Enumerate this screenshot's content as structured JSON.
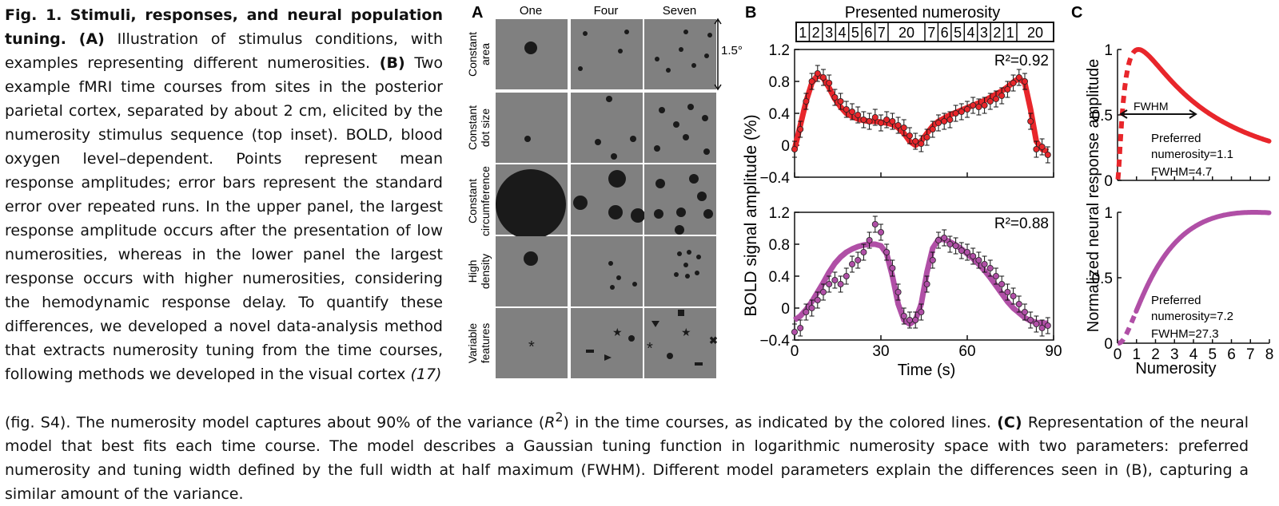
{
  "caption": {
    "figure_label": "Fig. 1.",
    "title": "Stimuli, responses, and neural population tuning.",
    "part_a_label": "(A)",
    "part_a_text": "Illustration of stimulus conditions, with examples representing different numerosities.",
    "part_b_label": "(B)",
    "part_b_text": "Two example fMRI time courses from sites in the posterior parietal cortex, separated by about 2 cm, elicited by the numerosity stimulus sequence (top inset). BOLD, blood oxygen level–dependent. Points represent mean response amplitudes; error bars represent the standard error over repeated runs. In the upper panel, the largest response amplitude occurs after the presentation of low numerosities, whereas in the lower panel the largest response occurs with higher numerosities, considering the hemodynamic response delay. To quantify these differences, we developed a novel data-analysis method that extracts numerosity tuning from the time courses, following methods we developed in the visual cortex",
    "ref": "(17)",
    "after_ref": "(fig. S4). The numerosity model captures about 90% of the variance (",
    "r2_symbol": "R",
    "r2_sup": "2",
    "after_r2": ") in the time courses, as indicated by the colored lines.",
    "part_c_label": "(C)",
    "part_c_text": "Representation of the neural model that best fits each time course. The model describes a Gaussian tuning function in logarithmic numerosity space with two parameters: preferred numerosity and tuning width defined by the full width at half maximum (FWHM). Different model parameters explain the differences seen in (B), capturing a similar amount of the variance."
  },
  "panel_a": {
    "label": "A",
    "columns": [
      "One",
      "Four",
      "Seven"
    ],
    "rows": [
      {
        "line1": "Constant",
        "line2": "area"
      },
      {
        "line1": "Constant",
        "line2": "dot size"
      },
      {
        "line1": "Constant",
        "line2": "circumference"
      },
      {
        "line1": "High",
        "line2": "density"
      },
      {
        "line1": "Variable",
        "line2": "features"
      }
    ],
    "scale_label": "1.5°",
    "tile_color": "#808080",
    "dot_color": "#1a1a1a"
  },
  "panel_b": {
    "label": "B",
    "inset_title": "Presented numerosity",
    "inset_sequence": [
      "1",
      "2",
      "3",
      "4",
      "5",
      "6",
      "7",
      "20",
      "7",
      "6",
      "5",
      "4",
      "3",
      "2",
      "1",
      "20"
    ],
    "ylabel": "BOLD signal amplitude (%)",
    "xlabel": "Time (s)",
    "x_ticks": [
      "0",
      "30",
      "60",
      "90"
    ],
    "y_ticks": [
      "1.2",
      "0.8",
      "0.4",
      "0",
      "−0.4"
    ]
  },
  "panel_c": {
    "label": "C",
    "ylabel": "Normalized neural response amplitude",
    "xlabel": "Numerosity",
    "x_ticks": [
      "0",
      "1",
      "2",
      "3",
      "4",
      "5",
      "6",
      "7",
      "8"
    ],
    "top_y_ticks": [
      "1",
      "0.5",
      "0"
    ],
    "bottom_y_ticks": [
      "1",
      "0.5",
      "0"
    ],
    "fwhm_label": "FWHM",
    "top_text": {
      "line1": "Preferred",
      "line2": "numerosity=1.1",
      "line3": "FWHM=4.7"
    },
    "bottom_text": {
      "line1": "Preferred",
      "line2": "numerosity=7.2",
      "line3": "FWHM=27.3"
    }
  },
  "chart_data": [
    {
      "type": "line",
      "xlabel": "Time (s)",
      "ylabel": "BOLD signal amplitude (%)",
      "xlim": [
        0,
        90
      ],
      "ylim": [
        -0.4,
        1.2
      ],
      "annotation": "R²=0.92",
      "color": "#e8262b",
      "x": [
        0,
        2,
        4,
        6,
        8,
        10,
        12,
        14,
        16,
        18,
        20,
        22,
        24,
        26,
        28,
        30,
        32,
        34,
        36,
        38,
        40,
        42,
        44,
        46,
        48,
        50,
        52,
        54,
        56,
        58,
        60,
        62,
        64,
        66,
        68,
        70,
        72,
        74,
        76,
        78,
        80,
        82,
        84,
        86,
        88
      ],
      "measured": [
        -0.05,
        0.2,
        0.55,
        0.8,
        0.9,
        0.85,
        0.78,
        0.6,
        0.55,
        0.45,
        0.42,
        0.38,
        0.32,
        0.3,
        0.35,
        0.28,
        0.32,
        0.3,
        0.25,
        0.22,
        0.12,
        0.05,
        0.02,
        0.1,
        0.2,
        0.28,
        0.3,
        0.32,
        0.4,
        0.42,
        0.45,
        0.5,
        0.48,
        0.5,
        0.55,
        0.58,
        0.62,
        0.7,
        0.78,
        0.85,
        0.8,
        0.3,
        -0.05,
        -0.02,
        -0.12
      ],
      "fit": [
        -0.05,
        0.25,
        0.55,
        0.78,
        0.88,
        0.84,
        0.72,
        0.58,
        0.48,
        0.4,
        0.36,
        0.33,
        0.31,
        0.3,
        0.3,
        0.29,
        0.28,
        0.26,
        0.22,
        0.15,
        0.05,
        0.0,
        0.05,
        0.15,
        0.24,
        0.3,
        0.34,
        0.38,
        0.41,
        0.44,
        0.47,
        0.5,
        0.53,
        0.56,
        0.6,
        0.64,
        0.68,
        0.73,
        0.79,
        0.84,
        0.78,
        0.45,
        0.05,
        -0.05,
        -0.08
      ]
    },
    {
      "type": "line",
      "xlabel": "Time (s)",
      "ylabel": "BOLD signal amplitude (%)",
      "xlim": [
        0,
        90
      ],
      "ylim": [
        -0.4,
        1.2
      ],
      "annotation": "R²=0.88",
      "color": "#b04fa6",
      "x": [
        0,
        2,
        4,
        6,
        8,
        10,
        12,
        14,
        16,
        18,
        20,
        22,
        24,
        26,
        28,
        30,
        32,
        34,
        36,
        38,
        40,
        42,
        44,
        46,
        48,
        50,
        52,
        54,
        56,
        58,
        60,
        62,
        64,
        66,
        68,
        70,
        72,
        74,
        76,
        78,
        80,
        82,
        84,
        86,
        88
      ],
      "measured": [
        -0.3,
        -0.25,
        -0.05,
        0.0,
        0.1,
        0.2,
        0.3,
        0.35,
        0.3,
        0.4,
        0.55,
        0.6,
        0.7,
        0.85,
        1.05,
        0.95,
        0.7,
        0.5,
        0.2,
        -0.1,
        -0.15,
        -0.15,
        -0.05,
        0.3,
        0.6,
        0.85,
        0.88,
        0.8,
        0.78,
        0.72,
        0.7,
        0.65,
        0.6,
        0.55,
        0.5,
        0.4,
        0.3,
        0.2,
        0.15,
        0.05,
        -0.05,
        -0.15,
        -0.2,
        -0.25,
        -0.22
      ],
      "fit": [
        -0.15,
        -0.1,
        -0.02,
        0.08,
        0.2,
        0.32,
        0.45,
        0.56,
        0.64,
        0.7,
        0.74,
        0.77,
        0.79,
        0.8,
        0.8,
        0.78,
        0.68,
        0.4,
        0.05,
        -0.15,
        -0.2,
        -0.15,
        0.05,
        0.45,
        0.75,
        0.86,
        0.86,
        0.83,
        0.79,
        0.74,
        0.68,
        0.62,
        0.55,
        0.47,
        0.38,
        0.28,
        0.18,
        0.08,
        0.0,
        -0.06,
        -0.12,
        -0.16,
        -0.18,
        -0.19,
        -0.19
      ]
    },
    {
      "type": "line",
      "xlabel": "Numerosity",
      "ylabel": "Normalized neural response amplitude",
      "xlim": [
        0,
        8
      ],
      "ylim": [
        0,
        1
      ],
      "color": "#e8262b",
      "preferred_numerosity": 1.1,
      "fwhm": 4.7
    },
    {
      "type": "line",
      "xlabel": "Numerosity",
      "ylabel": "Normalized neural response amplitude",
      "xlim": [
        0,
        8
      ],
      "ylim": [
        0,
        1
      ],
      "color": "#b04fa6",
      "preferred_numerosity": 7.2,
      "fwhm": 27.3
    }
  ]
}
